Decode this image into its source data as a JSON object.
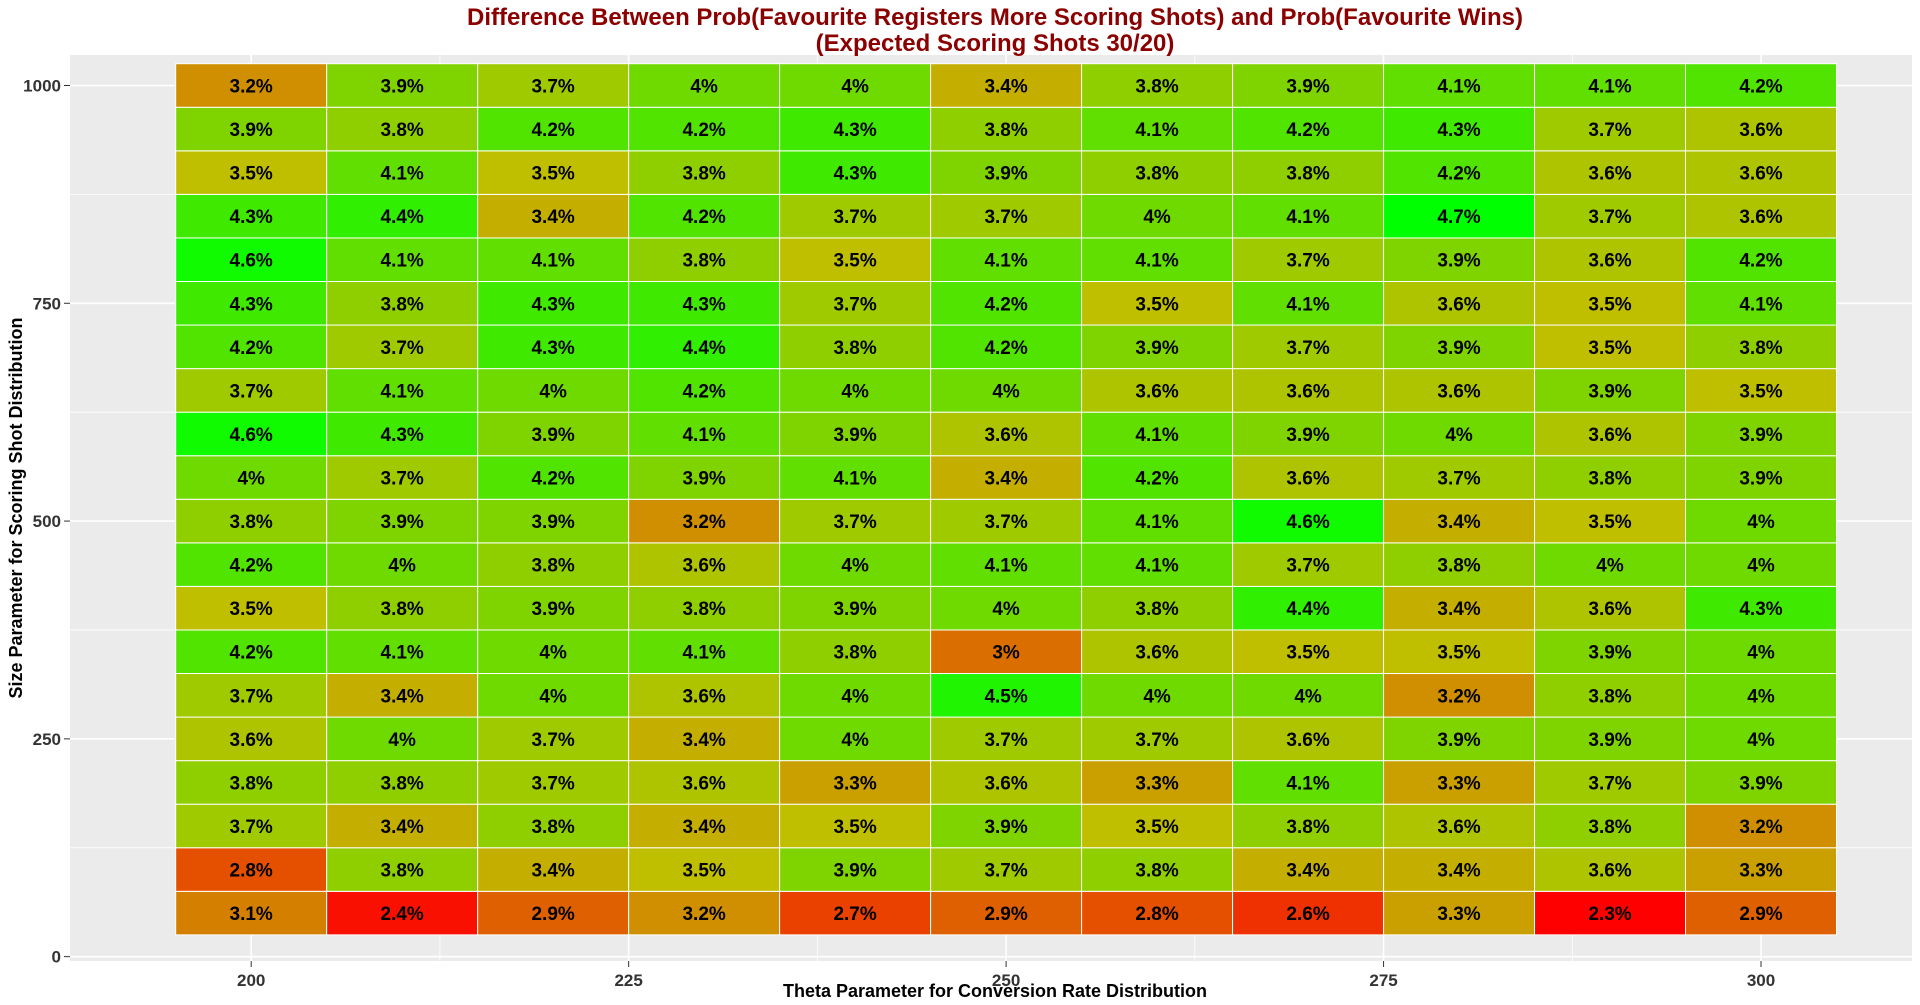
{
  "chart_data": {
    "type": "heatmap",
    "title": "Difference Between Prob(Favourite Registers More Scoring Shots) and Prob(Favourite Wins)",
    "subtitle": "(Expected Scoring Shots 30/20)",
    "xlabel": "Theta Parameter for Conversion Rate Distribution",
    "ylabel": "Size Parameter for Scoring Shot Distribution",
    "x": [
      200,
      210,
      220,
      230,
      240,
      250,
      260,
      270,
      280,
      290,
      300
    ],
    "y": [
      50,
      100,
      150,
      200,
      250,
      300,
      350,
      400,
      450,
      500,
      550,
      600,
      650,
      700,
      750,
      800,
      850,
      900,
      950,
      1000
    ],
    "xlim": [
      188,
      310
    ],
    "ylim": [
      -5,
      1035
    ],
    "x_ticks": [
      200,
      225,
      250,
      275,
      300
    ],
    "x_tick_labels": [
      "200",
      "225",
      "250",
      "275",
      "300"
    ],
    "y_ticks": [
      0,
      250,
      500,
      750,
      1000
    ],
    "y_tick_labels": [
      "0",
      "250",
      "500",
      "750",
      "1000"
    ],
    "value_unit": "%",
    "color_scale": {
      "low": "#ff0000",
      "mid": "#bfbf00",
      "high": "#00ff00",
      "min": 2.3,
      "max": 4.7
    },
    "grid": true,
    "values": [
      [
        "3.1%",
        "2.4%",
        "2.9%",
        "3.2%",
        "2.7%",
        "2.9%",
        "2.8%",
        "2.6%",
        "3.3%",
        "2.3%",
        "2.9%"
      ],
      [
        "2.8%",
        "3.8%",
        "3.4%",
        "3.5%",
        "3.9%",
        "3.7%",
        "3.8%",
        "3.4%",
        "3.4%",
        "3.6%",
        "3.3%"
      ],
      [
        "3.7%",
        "3.4%",
        "3.8%",
        "3.4%",
        "3.5%",
        "3.9%",
        "3.5%",
        "3.8%",
        "3.6%",
        "3.8%",
        "3.2%"
      ],
      [
        "3.8%",
        "3.8%",
        "3.7%",
        "3.6%",
        "3.3%",
        "3.6%",
        "3.3%",
        "4.1%",
        "3.3%",
        "3.7%",
        "3.9%"
      ],
      [
        "3.6%",
        "4%",
        "3.7%",
        "3.4%",
        "4%",
        "3.7%",
        "3.7%",
        "3.6%",
        "3.9%",
        "3.9%",
        "4%"
      ],
      [
        "3.7%",
        "3.4%",
        "4%",
        "3.6%",
        "4%",
        "4.5%",
        "4%",
        "4%",
        "3.2%",
        "3.8%",
        "4%"
      ],
      [
        "4.2%",
        "4.1%",
        "4%",
        "4.1%",
        "3.8%",
        "3%",
        "3.6%",
        "3.5%",
        "3.5%",
        "3.9%",
        "4%"
      ],
      [
        "3.5%",
        "3.8%",
        "3.9%",
        "3.8%",
        "3.9%",
        "4%",
        "3.8%",
        "4.4%",
        "3.4%",
        "3.6%",
        "4.3%"
      ],
      [
        "4.2%",
        "4%",
        "3.8%",
        "3.6%",
        "4%",
        "4.1%",
        "4.1%",
        "3.7%",
        "3.8%",
        "4%",
        "4%"
      ],
      [
        "3.8%",
        "3.9%",
        "3.9%",
        "3.2%",
        "3.7%",
        "3.7%",
        "4.1%",
        "4.6%",
        "3.4%",
        "3.5%",
        "4%"
      ],
      [
        "4%",
        "3.7%",
        "4.2%",
        "3.9%",
        "4.1%",
        "3.4%",
        "4.2%",
        "3.6%",
        "3.7%",
        "3.8%",
        "3.9%"
      ],
      [
        "4.6%",
        "4.3%",
        "3.9%",
        "4.1%",
        "3.9%",
        "3.6%",
        "4.1%",
        "3.9%",
        "4%",
        "3.6%",
        "3.9%"
      ],
      [
        "3.7%",
        "4.1%",
        "4%",
        "4.2%",
        "4%",
        "4%",
        "3.6%",
        "3.6%",
        "3.6%",
        "3.9%",
        "3.5%"
      ],
      [
        "4.2%",
        "3.7%",
        "4.3%",
        "4.4%",
        "3.8%",
        "4.2%",
        "3.9%",
        "3.7%",
        "3.9%",
        "3.5%",
        "3.8%"
      ],
      [
        "4.3%",
        "3.8%",
        "4.3%",
        "4.3%",
        "3.7%",
        "4.2%",
        "3.5%",
        "4.1%",
        "3.6%",
        "3.5%",
        "4.1%"
      ],
      [
        "4.6%",
        "4.1%",
        "4.1%",
        "3.8%",
        "3.5%",
        "4.1%",
        "4.1%",
        "3.7%",
        "3.9%",
        "3.6%",
        "4.2%"
      ],
      [
        "4.3%",
        "4.4%",
        "3.4%",
        "4.2%",
        "3.7%",
        "3.7%",
        "4%",
        "4.1%",
        "4.7%",
        "3.7%",
        "3.6%"
      ],
      [
        "3.5%",
        "4.1%",
        "3.5%",
        "3.8%",
        "4.3%",
        "3.9%",
        "3.8%",
        "3.8%",
        "4.2%",
        "3.6%",
        "3.6%"
      ],
      [
        "3.9%",
        "3.8%",
        "4.2%",
        "4.2%",
        "4.3%",
        "3.8%",
        "4.1%",
        "4.2%",
        "4.3%",
        "3.7%",
        "3.6%"
      ],
      [
        "3.2%",
        "3.9%",
        "3.7%",
        "4%",
        "4%",
        "3.4%",
        "3.8%",
        "3.9%",
        "4.1%",
        "4.1%",
        "4.2%"
      ]
    ]
  }
}
